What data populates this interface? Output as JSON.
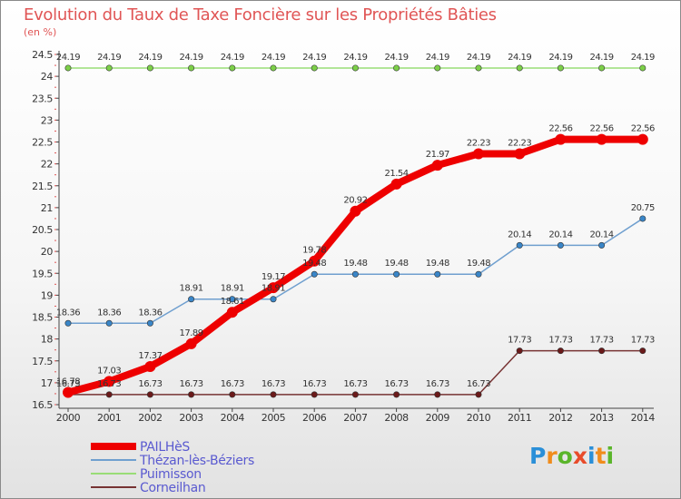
{
  "chart_data": {
    "type": "line",
    "title": "Evolution du Taux de Taxe Foncière sur les Propriétés Bâties",
    "subtitle": "(en %)",
    "xlabel": "",
    "ylabel": "",
    "x": [
      "2000",
      "2001",
      "2002",
      "2003",
      "2004",
      "2005",
      "2006",
      "2007",
      "2008",
      "2009",
      "2010",
      "2011",
      "2012",
      "2013",
      "2014"
    ],
    "ylim": [
      16.5,
      24.5
    ],
    "yticks": [
      "16.5",
      "17",
      "17.5",
      "18",
      "18.5",
      "19",
      "19.5",
      "20",
      "20.5",
      "21",
      "21.5",
      "22",
      "22.5",
      "23",
      "23.5",
      "24",
      "24.5"
    ],
    "series": [
      {
        "name": "PAILHèS",
        "color": "#ee0000",
        "thick": true,
        "values": [
          16.78,
          17.03,
          17.37,
          17.89,
          18.61,
          19.17,
          19.78,
          20.92,
          21.54,
          21.97,
          22.23,
          22.23,
          22.56,
          22.56,
          22.56
        ]
      },
      {
        "name": "Thézan-lès-Béziers",
        "color": "#6f9fcf",
        "marker": "#3a86c8",
        "thick": false,
        "values": [
          18.36,
          18.36,
          18.36,
          18.91,
          18.91,
          18.91,
          19.48,
          19.48,
          19.48,
          19.48,
          19.48,
          20.14,
          20.14,
          20.14,
          20.75
        ]
      },
      {
        "name": "Puimisson",
        "color": "#99dd77",
        "marker": "#7ccf48",
        "thick": false,
        "values": [
          24.19,
          24.19,
          24.19,
          24.19,
          24.19,
          24.19,
          24.19,
          24.19,
          24.19,
          24.19,
          24.19,
          24.19,
          24.19,
          24.19,
          24.19
        ]
      },
      {
        "name": "Corneilhan",
        "color": "#773333",
        "marker": "#6b1a1a",
        "thick": false,
        "values": [
          16.73,
          16.73,
          16.73,
          16.73,
          16.73,
          16.73,
          16.73,
          16.73,
          16.73,
          16.73,
          16.73,
          17.73,
          17.73,
          17.73,
          17.73
        ]
      }
    ],
    "legend_position": "bottom-left",
    "grid": false
  },
  "brand": {
    "letters": [
      "P",
      "r",
      "o",
      "x",
      "i",
      "t",
      "i"
    ],
    "colors": [
      "#2a8fd8",
      "#f08c1c",
      "#5ab52a",
      "#e84b2a",
      "#2a8fd8",
      "#f08c1c",
      "#5ab52a"
    ]
  }
}
